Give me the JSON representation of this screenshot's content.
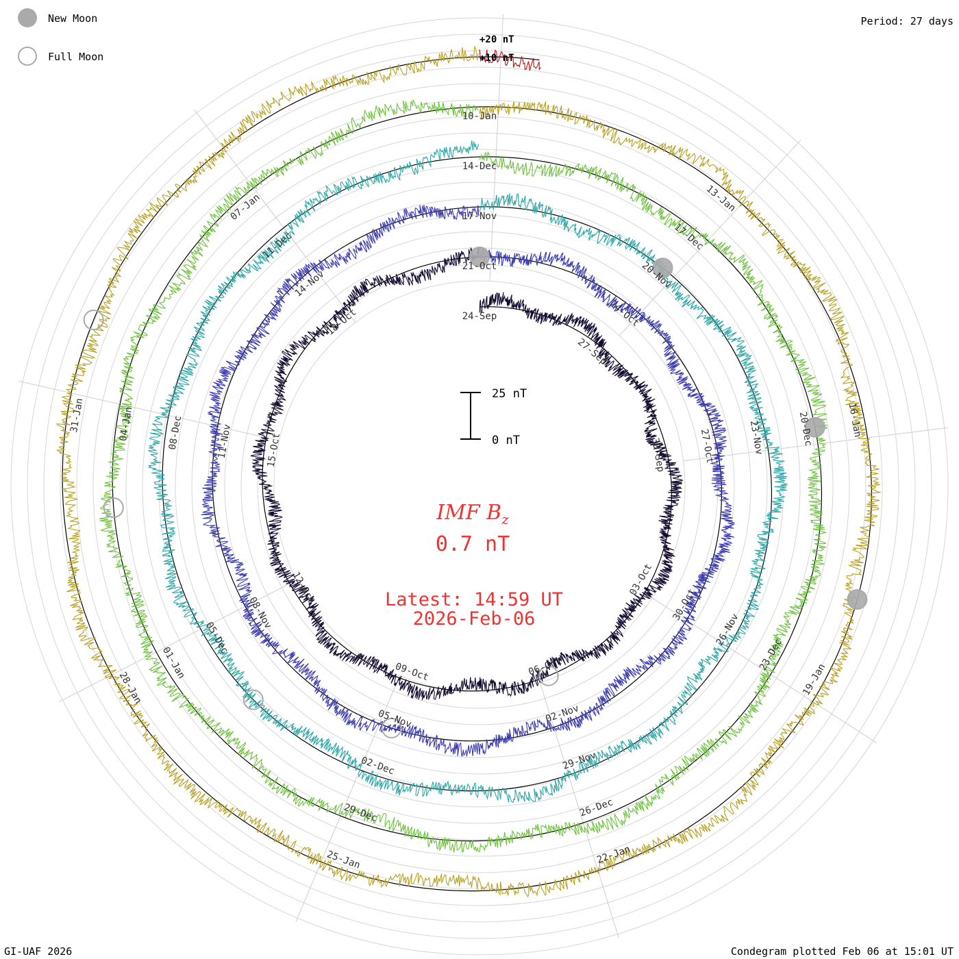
{
  "header": {
    "period_label": "Period: 27 days"
  },
  "legend": {
    "new_moon_label": "New Moon",
    "full_moon_label": "Full Moon",
    "new_moon_color": "#aaaaaa",
    "full_moon_color": "#ffffff"
  },
  "footer": {
    "credit": "GI-UAF 2026",
    "plotted": "Condegram plotted Feb 06 at 15:01 UT"
  },
  "center": {
    "quantity": "IMF B",
    "subscript": "z",
    "current_value": "0.7 nT",
    "latest_label": "Latest: 14:59 UT",
    "latest_date": "2026-Feb-06",
    "accent_color": "#ee3333"
  },
  "chart_data": {
    "type": "line",
    "subtype": "spiral condegram",
    "period_days": 27,
    "value_scale": {
      "top_label": "25 nT",
      "bottom_label": "0 nT",
      "top_nT": 25,
      "bottom_nT": 0
    },
    "reference_labels": [
      "+20 nT",
      "+10 nT"
    ],
    "grid": true,
    "series": [
      {
        "start": "2025-09-24",
        "color": "#140a30",
        "dates": [
          {
            "label": "24-Sep",
            "rel_day": 0
          },
          {
            "label": "27-Sep",
            "rel_day": 3
          },
          {
            "label": "30-Sep",
            "rel_day": 6
          },
          {
            "label": "03-Oct",
            "rel_day": 9
          },
          {
            "label": "06-Oct",
            "rel_day": 12
          },
          {
            "label": "09-Oct",
            "rel_day": 15
          },
          {
            "label": "12-Oct",
            "rel_day": 18
          },
          {
            "label": "15-Oct",
            "rel_day": 21
          },
          {
            "label": "18-Oct",
            "rel_day": 24
          }
        ]
      },
      {
        "start": "2025-10-21",
        "color": "#3a3ab0",
        "dates": [
          {
            "label": "21-Oct",
            "rel_day": 0
          },
          {
            "label": "24-Oct",
            "rel_day": 3
          },
          {
            "label": "27-Oct",
            "rel_day": 6
          },
          {
            "label": "30-Oct",
            "rel_day": 9
          },
          {
            "label": "02-Nov",
            "rel_day": 12
          },
          {
            "label": "05-Nov",
            "rel_day": 15
          },
          {
            "label": "08-Nov",
            "rel_day": 18
          },
          {
            "label": "11-Nov",
            "rel_day": 21
          },
          {
            "label": "14-Nov",
            "rel_day": 24
          }
        ]
      },
      {
        "start": "2025-11-17",
        "color": "#2aa7a8",
        "dates": [
          {
            "label": "17-Nov",
            "rel_day": 0
          },
          {
            "label": "20-Nov",
            "rel_day": 3
          },
          {
            "label": "23-Nov",
            "rel_day": 6
          },
          {
            "label": "26-Nov",
            "rel_day": 9
          },
          {
            "label": "29-Nov",
            "rel_day": 12
          },
          {
            "label": "02-Dec",
            "rel_day": 15
          },
          {
            "label": "05-Dec",
            "rel_day": 18
          },
          {
            "label": "08-Dec",
            "rel_day": 21
          },
          {
            "label": "11-Dec",
            "rel_day": 24
          }
        ]
      },
      {
        "start": "2025-12-14",
        "color": "#6cc23a",
        "dates": [
          {
            "label": "14-Dec",
            "rel_day": 0
          },
          {
            "label": "17-Dec",
            "rel_day": 3
          },
          {
            "label": "20-Dec",
            "rel_day": 6
          },
          {
            "label": "23-Dec",
            "rel_day": 9
          },
          {
            "label": "26-Dec",
            "rel_day": 12
          },
          {
            "label": "29-Dec",
            "rel_day": 15
          },
          {
            "label": "01-Jan",
            "rel_day": 18
          },
          {
            "label": "04-Jan",
            "rel_day": 21
          },
          {
            "label": "07-Jan",
            "rel_day": 24
          }
        ]
      },
      {
        "start": "2026-01-10",
        "color": "#b8a020",
        "dates": [
          {
            "label": "10-Jan",
            "rel_day": 0
          },
          {
            "label": "13-Jan",
            "rel_day": 3
          },
          {
            "label": "16-Jan",
            "rel_day": 6
          },
          {
            "label": "19-Jan",
            "rel_day": 9
          },
          {
            "label": "22-Jan",
            "rel_day": 12
          },
          {
            "label": "25-Jan",
            "rel_day": 15
          },
          {
            "label": "28-Jan",
            "rel_day": 18
          },
          {
            "label": "31-Jan",
            "rel_day": 21
          }
        ]
      },
      {
        "start": "2026-02-06",
        "color": "#bb1111",
        "dates": []
      }
    ],
    "moons": [
      {
        "type": "new",
        "label": "21-Oct"
      },
      {
        "type": "new",
        "label": "20-Nov"
      },
      {
        "type": "new",
        "label": "20-Dec"
      },
      {
        "type": "new",
        "label": "18-Jan"
      },
      {
        "type": "full",
        "label": "06-Oct"
      },
      {
        "type": "full",
        "label": "05-Nov"
      },
      {
        "type": "full",
        "label": "04-Dec"
      },
      {
        "type": "full",
        "label": "03-Jan"
      },
      {
        "type": "full",
        "label": "01-Feb"
      }
    ]
  }
}
